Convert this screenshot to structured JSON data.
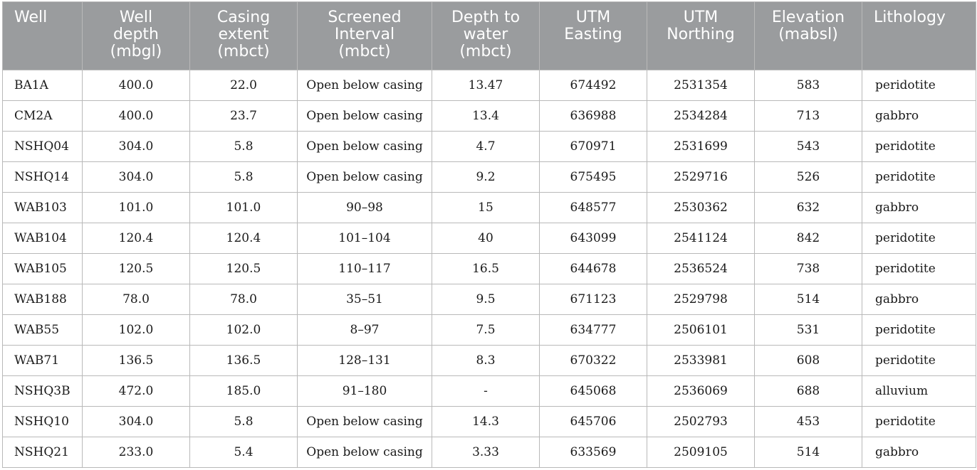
{
  "table": {
    "headers": [
      "Well",
      "Well\ndepth\n(mbgl)",
      "Casing\nextent\n(mbct)",
      "Screened\nInterval\n(mbct)",
      "Depth to\nwater\n(mbct)",
      "UTM\nEasting",
      "UTM\nNorthing",
      "Elevation\n(mabsl)",
      "Lithology"
    ],
    "rows": [
      [
        "BA1A",
        "400.0",
        "22.0",
        "Open below casing",
        "13.47",
        "674492",
        "2531354",
        "583",
        "peridotite"
      ],
      [
        "CM2A",
        "400.0",
        "23.7",
        "Open below casing",
        "13.4",
        "636988",
        "2534284",
        "713",
        "gabbro"
      ],
      [
        "NSHQ04",
        "304.0",
        "5.8",
        "Open below casing",
        "4.7",
        "670971",
        "2531699",
        "543",
        "peridotite"
      ],
      [
        "NSHQ14",
        "304.0",
        "5.8",
        "Open below casing",
        "9.2",
        "675495",
        "2529716",
        "526",
        "peridotite"
      ],
      [
        "WAB103",
        "101.0",
        "101.0",
        "90–98",
        "15",
        "648577",
        "2530362",
        "632",
        "gabbro"
      ],
      [
        "WAB104",
        "120.4",
        "120.4",
        "101–104",
        "40",
        "643099",
        "2541124",
        "842",
        "peridotite"
      ],
      [
        "WAB105",
        "120.5",
        "120.5",
        "110–117",
        "16.5",
        "644678",
        "2536524",
        "738",
        "peridotite"
      ],
      [
        "WAB188",
        "78.0",
        "78.0",
        "35–51",
        "9.5",
        "671123",
        "2529798",
        "514",
        "gabbro"
      ],
      [
        "WAB55",
        "102.0",
        "102.0",
        "8–97",
        "7.5",
        "634777",
        "2506101",
        "531",
        "peridotite"
      ],
      [
        "WAB71",
        "136.5",
        "136.5",
        "128–131",
        "8.3",
        "670322",
        "2533981",
        "608",
        "peridotite"
      ],
      [
        "NSHQ3B",
        "472.0",
        "185.0",
        "91–180",
        "-",
        "645068",
        "2536069",
        "688",
        "alluvium"
      ],
      [
        "NSHQ10",
        "304.0",
        "5.8",
        "Open below casing",
        "14.3",
        "645706",
        "2502793",
        "453",
        "peridotite"
      ],
      [
        "NSHQ21",
        "233.0",
        "5.4",
        "Open below casing",
        "3.33",
        "633569",
        "2509105",
        "514",
        "gabbro"
      ]
    ]
  },
  "colors": {
    "header_background": "#9a9c9e",
    "header_text": "#ffffff",
    "grid": "#b9b9b9",
    "body_text": "#1a1a1a"
  }
}
